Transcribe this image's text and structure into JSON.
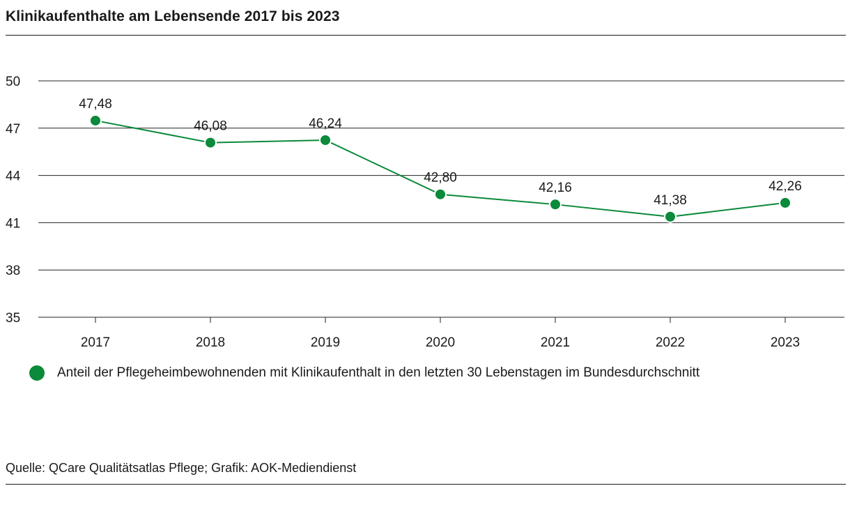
{
  "title": "Klinikaufenthalte am Lebensende 2017 bis 2023",
  "source": "Quelle: QCare Qualitätsatlas Pflege; Grafik: AOK-Mediendienst",
  "colors": {
    "series": "#0a8a3a",
    "line": "#0a8a3a",
    "grid": "#222222",
    "text": "#1a1a1a"
  },
  "chart_data": {
    "type": "line",
    "title": "Klinikaufenthalte am Lebensende 2017 bis 2023",
    "xlabel": "",
    "ylabel": "",
    "x": [
      "2017",
      "2018",
      "2019",
      "2020",
      "2021",
      "2022",
      "2023"
    ],
    "ylim": [
      35,
      50
    ],
    "yticks": [
      35,
      38,
      41,
      44,
      47,
      50
    ],
    "grid": true,
    "legend_position": "bottom-left",
    "series": [
      {
        "name": "Anteil der Pflegeheimbewohnenden mit Klinikaufenthalt in den letzten 30 Lebenstagen im Bundesdurchschnitt",
        "values": [
          47.48,
          46.08,
          46.24,
          42.8,
          42.16,
          41.38,
          42.26
        ],
        "labels": [
          "47,48",
          "46,08",
          "46,24",
          "42,80",
          "42,16",
          "41,38",
          "42,26"
        ]
      }
    ]
  }
}
